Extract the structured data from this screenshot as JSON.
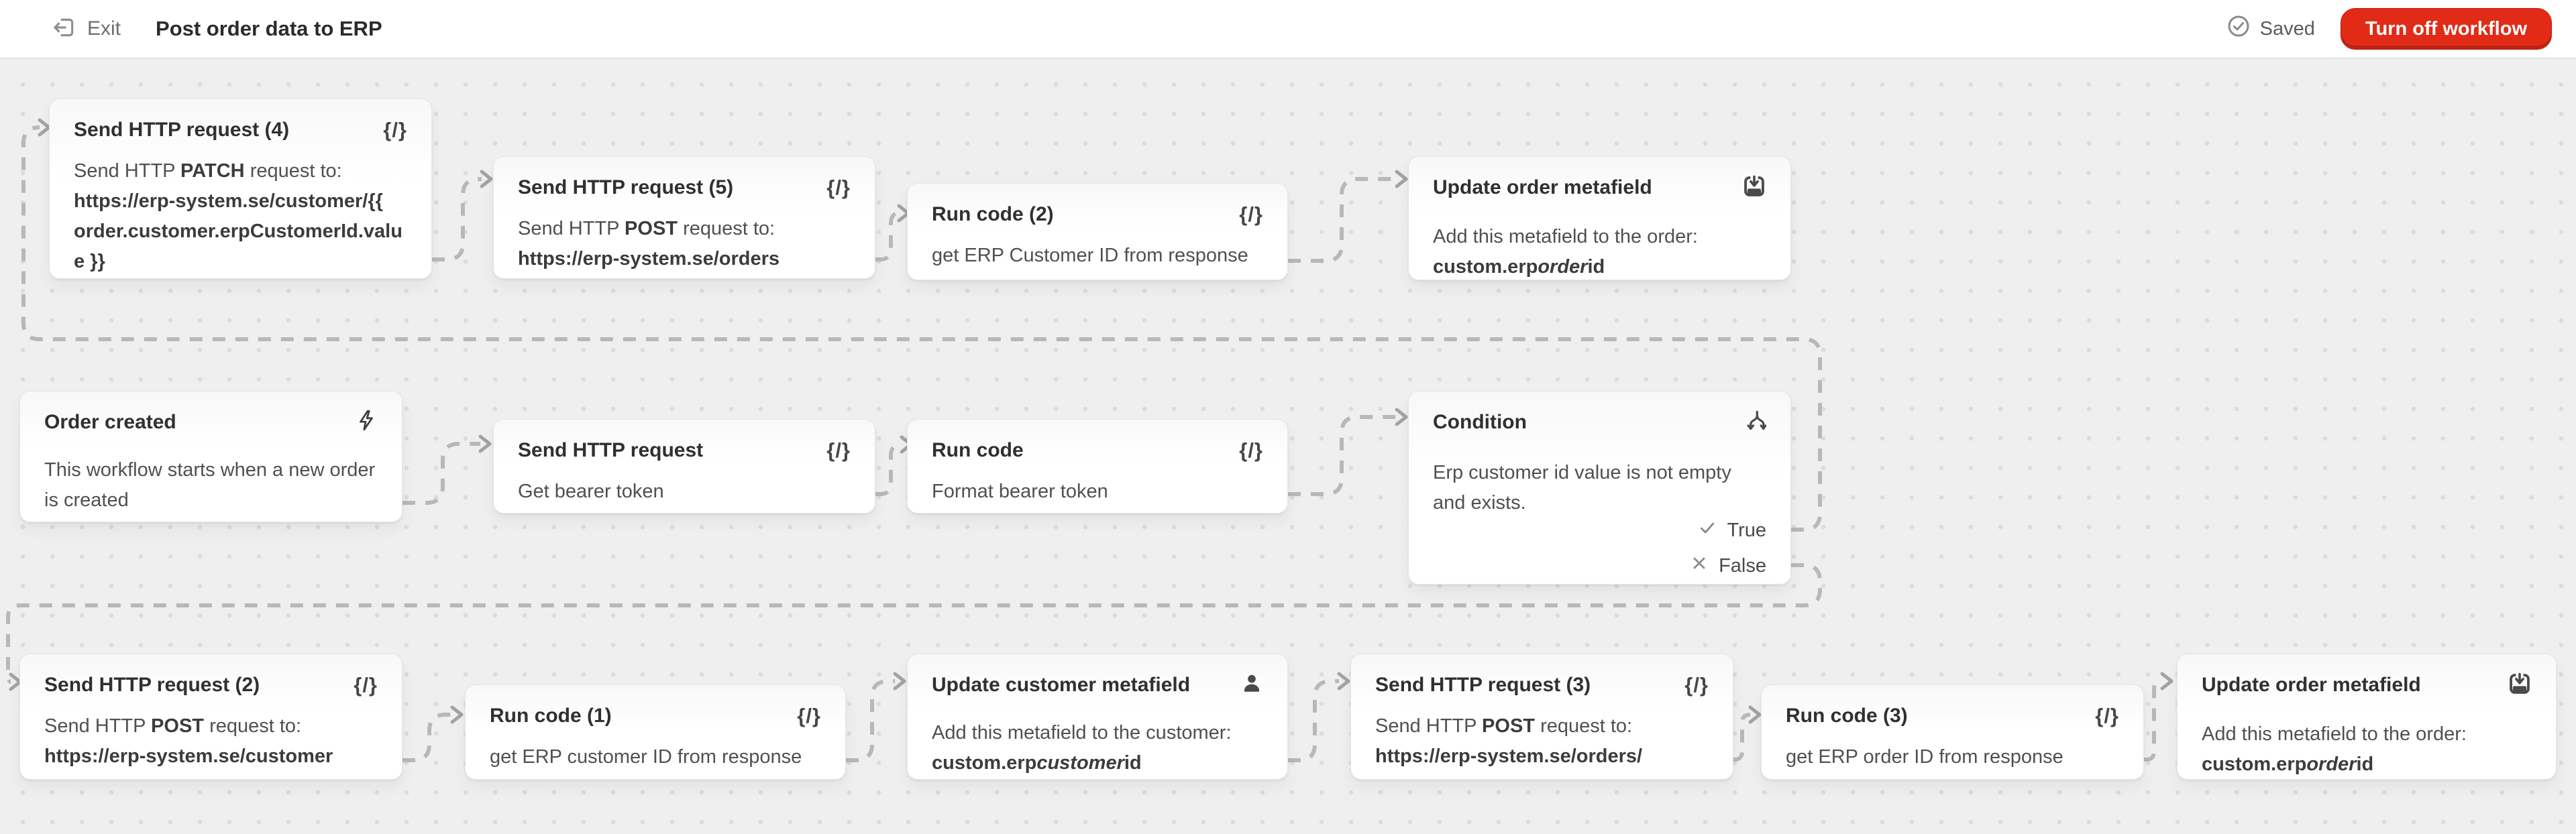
{
  "topbar": {
    "exit_label": "Exit",
    "title": "Post order data to ERP",
    "saved_label": "Saved",
    "turn_off_label": "Turn off workflow",
    "accent_red": "#e12b17"
  },
  "glyphs": {
    "code": "{/}"
  },
  "condition_outputs": {
    "true_label": "True",
    "false_label": "False"
  },
  "cards": [
    {
      "title": "Send HTTP request (4)",
      "icon": "code",
      "body": [
        {
          "t": "Send HTTP "
        },
        {
          "t": "PATCH",
          "b": 1
        },
        {
          "t": " request to: "
        },
        {
          "t": "https://erp-system.se/customer/{{ order.customer.erpCustomerId.value }}",
          "b": 1
        }
      ]
    },
    {
      "title": "Send HTTP request (5)",
      "icon": "code",
      "body": [
        {
          "t": "Send HTTP "
        },
        {
          "t": "POST",
          "b": 1
        },
        {
          "t": " request to: "
        },
        {
          "t": "https://erp-system.se/orders",
          "b": 1
        }
      ]
    },
    {
      "title": "Run code (2)",
      "icon": "code",
      "body": [
        {
          "t": "get ERP Customer ID from response"
        }
      ]
    },
    {
      "title": "Update order metafield",
      "icon": "archive-down",
      "body": [
        {
          "t": "Add this metafield to the order: "
        },
        {
          "t": "custom.erp",
          "b": 1
        },
        {
          "t": "order",
          "b": 1,
          "i": 1
        },
        {
          "t": "id",
          "b": 1
        }
      ]
    },
    {
      "title": "Order created",
      "icon": "flash",
      "body": [
        {
          "t": "This workflow starts when a new order is created"
        }
      ]
    },
    {
      "title": "Send HTTP request",
      "icon": "code",
      "body": [
        {
          "t": "Get bearer token"
        }
      ]
    },
    {
      "title": "Run code",
      "icon": "code",
      "body": [
        {
          "t": "Format bearer token"
        }
      ]
    },
    {
      "title": "Condition",
      "icon": "branch",
      "body": [
        {
          "t": "Erp customer id value is not empty and exists."
        }
      ]
    },
    {
      "title": "Send HTTP request (2)",
      "icon": "code",
      "body": [
        {
          "t": "Send HTTP "
        },
        {
          "t": "POST",
          "b": 1
        },
        {
          "t": " request to: "
        },
        {
          "t": "https://erp-system.se/customer",
          "b": 1
        }
      ]
    },
    {
      "title": "Run code (1)",
      "icon": "code",
      "body": [
        {
          "t": "get ERP customer ID from response"
        }
      ]
    },
    {
      "title": "Update customer metafield",
      "icon": "person",
      "body": [
        {
          "t": "Add this metafield to the customer: "
        },
        {
          "t": "custom.erp",
          "b": 1
        },
        {
          "t": "customer",
          "b": 1,
          "i": 1
        },
        {
          "t": "id",
          "b": 1
        }
      ]
    },
    {
      "title": "Send HTTP request (3)",
      "icon": "code",
      "body": [
        {
          "t": "Send HTTP "
        },
        {
          "t": "POST",
          "b": 1
        },
        {
          "t": " request to: "
        },
        {
          "t": "https://erp-system.se/orders/",
          "b": 1
        }
      ]
    },
    {
      "title": "Run code (3)",
      "icon": "code",
      "body": [
        {
          "t": "get ERP order ID from response"
        }
      ]
    },
    {
      "title": "Update order metafield",
      "icon": "archive-down",
      "body": [
        {
          "t": "Add this metafield to the order: "
        },
        {
          "t": "custom.erp",
          "b": 1
        },
        {
          "t": "order",
          "b": 1,
          "i": 1
        },
        {
          "t": "id",
          "b": 1
        }
      ]
    }
  ]
}
